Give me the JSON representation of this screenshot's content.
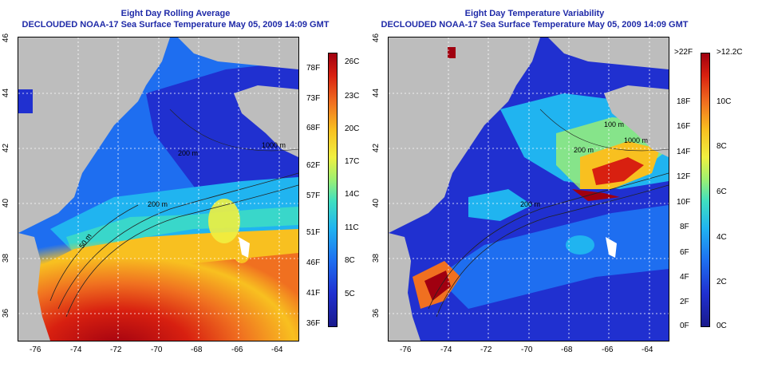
{
  "left_panel": {
    "title_line1": "Eight Day Rolling Average",
    "title_line2": "DECLOUDED NOAA-17 Sea Surface Temperature May 05, 2009 14:09 GMT",
    "contour_labels": [
      "1000 m",
      "200 m",
      "50 m",
      "200 m"
    ],
    "colorbar": {
      "celsius": [
        "26C",
        "23C",
        "20C",
        "17C",
        "14C",
        "11C",
        "8C",
        "5C"
      ],
      "fahrenheit": [
        "78F",
        "73F",
        "68F",
        "62F",
        "57F",
        "51F",
        "46F",
        "41F",
        "36F"
      ],
      "colors": [
        "#1a1a8c",
        "#2030d0",
        "#1e6ef0",
        "#20b4f0",
        "#40e0c0",
        "#a0f070",
        "#f0f040",
        "#f8c020",
        "#f07020",
        "#d82010",
        "#a00010"
      ]
    }
  },
  "right_panel": {
    "title_line1": "Eight Day Temperature Variability",
    "title_line2": "DECLOUDED NOAA-17 Sea Surface Temperature May 05, 2009 14:09 GMT",
    "contour_labels": [
      "100 m",
      "1000 m",
      "200 m",
      "200 m"
    ],
    "colorbar": {
      "celsius": [
        ">12.2C",
        "10C",
        "8C",
        "6C",
        "4C",
        "2C",
        "0C"
      ],
      "fahrenheit": [
        ">22F",
        "18F",
        "16F",
        "14F",
        "12F",
        "10F",
        "8F",
        "6F",
        "4F",
        "2F",
        "0F"
      ],
      "colors": [
        "#1a1a8c",
        "#2030d0",
        "#1e6ef0",
        "#20b4f0",
        "#40e0c0",
        "#a0f070",
        "#f0f040",
        "#f8c020",
        "#f07020",
        "#d82010",
        "#a00010"
      ]
    }
  },
  "axes": {
    "lon_ticks": [
      "-76",
      "-74",
      "-72",
      "-70",
      "-68",
      "-66",
      "-64"
    ],
    "lat_ticks": [
      "46",
      "44",
      "42",
      "40",
      "38",
      "36"
    ]
  },
  "chart_data": [
    {
      "type": "heatmap",
      "title": "Eight Day Rolling Average",
      "subtitle": "DECLOUDED NOAA-17 Sea Surface Temperature May 05, 2009 14:09 GMT",
      "xlim": [
        -77,
        -63
      ],
      "ylim": [
        35,
        46
      ],
      "x_ticks": [
        -76,
        -74,
        -72,
        -70,
        -68,
        -66,
        -64
      ],
      "y_ticks": [
        36,
        38,
        40,
        42,
        44,
        46
      ],
      "colorbar_range_c": [
        3,
        27
      ],
      "colorbar_labels_c": [
        "26C",
        "23C",
        "20C",
        "17C",
        "14C",
        "11C",
        "8C",
        "5C"
      ],
      "colorbar_labels_f": [
        "78F",
        "73F",
        "68F",
        "62F",
        "57F",
        "51F",
        "46F",
        "41F",
        "36F"
      ],
      "grid": true
    },
    {
      "type": "heatmap",
      "title": "Eight Day Temperature Variability",
      "subtitle": "DECLOUDED NOAA-17 Sea Surface Temperature May 05, 2009 14:09 GMT",
      "xlim": [
        -77,
        -63
      ],
      "ylim": [
        35,
        46
      ],
      "x_ticks": [
        -76,
        -74,
        -72,
        -70,
        -68,
        -66,
        -64
      ],
      "y_ticks": [
        36,
        38,
        40,
        42,
        44,
        46
      ],
      "colorbar_range_c": [
        0,
        12.2
      ],
      "colorbar_labels_c": [
        ">12.2C",
        "10C",
        "8C",
        "6C",
        "4C",
        "2C",
        "0C"
      ],
      "colorbar_labels_f": [
        ">22F",
        "18F",
        "16F",
        "14F",
        "12F",
        "10F",
        "8F",
        "6F",
        "4F",
        "2F",
        "0F"
      ],
      "grid": true
    }
  ]
}
